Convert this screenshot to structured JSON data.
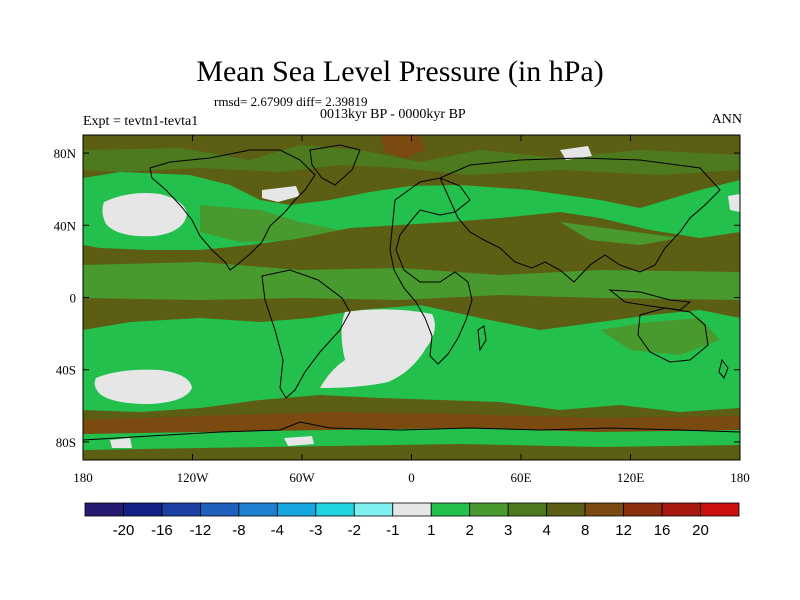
{
  "title": "Mean Sea Level Pressure (in hPa)",
  "stats_text": "rmsd= 2.67909 diff= 2.39819",
  "period_text": "0013kyr BP - 0000kyr BP",
  "experiment_text": "Expt = tevtn1-tevta1",
  "season_text": "ANN",
  "lat_labels": [
    "80N",
    "40N",
    "0",
    "40S",
    "80S"
  ],
  "lon_labels": [
    "180",
    "120W",
    "60W",
    "0",
    "60E",
    "120E",
    "180"
  ],
  "colorbar": {
    "labels": [
      "-20",
      "-16",
      "-12",
      "-8",
      "-4",
      "-3",
      "-2",
      "-1",
      "1",
      "2",
      "3",
      "4",
      "8",
      "12",
      "16",
      "20"
    ],
    "colors": [
      "#241a72",
      "#142088",
      "#1b3fa3",
      "#1e5fbe",
      "#1f7fd0",
      "#16a6e0",
      "#1fd3e0",
      "#7ff0f0",
      "#e6e6e6",
      "#23c04d",
      "#489a2e",
      "#4d7a1e",
      "#5c5e14",
      "#7a4a10",
      "#8a2e10",
      "#a8180e",
      "#cc1010"
    ]
  },
  "map_palette": {
    "background": "#5c5e14",
    "weak_positive": "#23c04d",
    "mid_positive": "#489a2e",
    "positive_3_4": "#4d7a1e",
    "positive_8_12": "#7a4a10",
    "near_zero": "#e6e6e6"
  }
}
